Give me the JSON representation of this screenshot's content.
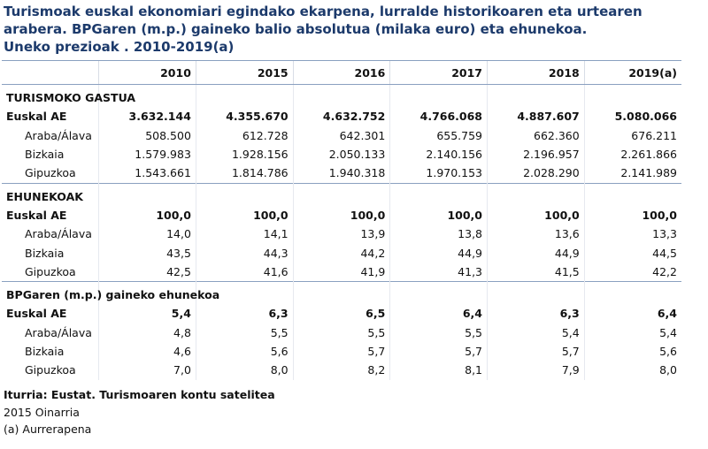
{
  "title": [
    "Turismoak euskal ekonomiari egindako ekarpena, lurralde historikoaren eta urtearen",
    "arabera. BPGaren (m.p.) gaineko balio absolutua (milaka euro) eta ehunekoa.",
    "Uneko prezioak . 2010-2019(a)"
  ],
  "table": {
    "columns": [
      "2010",
      "2015",
      "2016",
      "2017",
      "2018",
      "2019(a)"
    ],
    "sections": [
      {
        "title": "TURISMOKO GASTUA",
        "rows": [
          {
            "label": "Euskal AE",
            "values": [
              "3.632.144",
              "4.355.670",
              "4.632.752",
              "4.766.068",
              "4.887.607",
              "5.080.066"
            ]
          },
          {
            "label": "Araba/Álava",
            "values": [
              "508.500",
              "612.728",
              "642.301",
              "655.759",
              "662.360",
              "676.211"
            ]
          },
          {
            "label": "Bizkaia",
            "values": [
              "1.579.983",
              "1.928.156",
              "2.050.133",
              "2.140.156",
              "2.196.957",
              "2.261.866"
            ]
          },
          {
            "label": "Gipuzkoa",
            "values": [
              "1.543.661",
              "1.814.786",
              "1.940.318",
              "1.970.153",
              "2.028.290",
              "2.141.989"
            ]
          }
        ]
      },
      {
        "title": "EHUNEKOAK",
        "rows": [
          {
            "label": "Euskal AE",
            "values": [
              "100,0",
              "100,0",
              "100,0",
              "100,0",
              "100,0",
              "100,0"
            ]
          },
          {
            "label": "Araba/Álava",
            "values": [
              "14,0",
              "14,1",
              "13,9",
              "13,8",
              "13,6",
              "13,3"
            ]
          },
          {
            "label": "Bizkaia",
            "values": [
              "43,5",
              "44,3",
              "44,2",
              "44,9",
              "44,9",
              "44,5"
            ]
          },
          {
            "label": "Gipuzkoa",
            "values": [
              "42,5",
              "41,6",
              "41,9",
              "41,3",
              "41,5",
              "42,2"
            ]
          }
        ]
      },
      {
        "title": "BPGaren (m.p.) gaineko ehunekoa",
        "rows": [
          {
            "label": "Euskal AE",
            "values": [
              "5,4",
              "6,3",
              "6,5",
              "6,4",
              "6,3",
              "6,4"
            ]
          },
          {
            "label": "Araba/Álava",
            "values": [
              "4,8",
              "5,5",
              "5,5",
              "5,5",
              "5,4",
              "5,4"
            ]
          },
          {
            "label": "Bizkaia",
            "values": [
              "4,6",
              "5,6",
              "5,7",
              "5,7",
              "5,7",
              "5,6"
            ]
          },
          {
            "label": "Gipuzkoa",
            "values": [
              "7,0",
              "8,0",
              "8,2",
              "8,1",
              "7,9",
              "8,0"
            ]
          }
        ]
      }
    ]
  },
  "footer": {
    "source": "Iturria: Eustat. Turismoaren kontu satelitea",
    "notes": [
      "2015 Oinarria",
      "(a) Aurrerapena"
    ]
  }
}
